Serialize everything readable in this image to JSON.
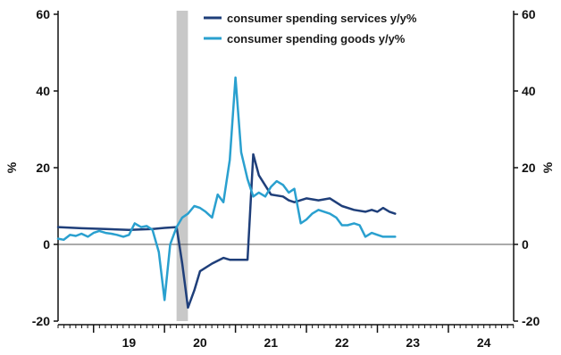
{
  "chart_data": {
    "type": "line",
    "title": "",
    "ylabel_left": "%",
    "ylabel_right": "%",
    "ylim": [
      -20,
      60
    ],
    "y_ticks": [
      -20,
      0,
      20,
      40,
      60
    ],
    "x_range": [
      2018.5,
      2024.92
    ],
    "x_ticks": [
      {
        "label": "19",
        "value": 2019.5
      },
      {
        "label": "20",
        "value": 2020.5
      },
      {
        "label": "21",
        "value": 2021.5
      },
      {
        "label": "22",
        "value": 2022.5
      },
      {
        "label": "23",
        "value": 2023.5
      },
      {
        "label": "24",
        "value": 2024.5
      }
    ],
    "shaded_period": [
      2020.17,
      2020.33
    ],
    "zero_line": true,
    "legend_position": "top-center",
    "series": [
      {
        "name": "consumer spending services y/y%",
        "color": "#1f3f7a",
        "x": [
          2018.5,
          2018.83,
          2019.17,
          2019.5,
          2019.83,
          2020.0,
          2020.17,
          2020.25,
          2020.33,
          2020.42,
          2020.5,
          2020.67,
          2020.83,
          2020.92,
          2021.0,
          2021.17,
          2021.25,
          2021.33,
          2021.5,
          2021.67,
          2021.75,
          2021.83,
          2022.0,
          2022.17,
          2022.33,
          2022.5,
          2022.67,
          2022.83,
          2022.92,
          2023.0,
          2023.08,
          2023.17,
          2023.25
        ],
        "y": [
          4.5,
          4.2,
          4.0,
          3.8,
          4.0,
          4.3,
          4.5,
          -5.0,
          -16.5,
          -12.0,
          -7.0,
          -5.0,
          -3.5,
          -4.0,
          -4.0,
          -4.0,
          23.5,
          18.0,
          13.0,
          12.5,
          11.5,
          11.0,
          12.0,
          11.5,
          12.0,
          10.0,
          9.0,
          8.5,
          9.0,
          8.5,
          9.5,
          8.5,
          8.0
        ]
      },
      {
        "name": "consumer spending goods y/y%",
        "color": "#2aa0cf",
        "x": [
          2018.5,
          2018.58,
          2018.67,
          2018.75,
          2018.83,
          2018.92,
          2019.0,
          2019.08,
          2019.17,
          2019.25,
          2019.33,
          2019.42,
          2019.5,
          2019.58,
          2019.67,
          2019.75,
          2019.83,
          2019.92,
          2020.0,
          2020.08,
          2020.17,
          2020.25,
          2020.33,
          2020.42,
          2020.5,
          2020.58,
          2020.67,
          2020.75,
          2020.83,
          2020.92,
          2021.0,
          2021.08,
          2021.17,
          2021.25,
          2021.33,
          2021.42,
          2021.5,
          2021.58,
          2021.67,
          2021.75,
          2021.83,
          2021.92,
          2022.0,
          2022.08,
          2022.17,
          2022.25,
          2022.33,
          2022.42,
          2022.5,
          2022.58,
          2022.67,
          2022.75,
          2022.83,
          2022.92,
          2023.0,
          2023.08,
          2023.17,
          2023.25
        ],
        "y": [
          1.5,
          1.2,
          2.5,
          2.2,
          2.8,
          2.0,
          3.0,
          3.5,
          3.0,
          2.8,
          2.5,
          2.0,
          2.5,
          5.5,
          4.5,
          4.8,
          3.8,
          -2.0,
          -14.5,
          0.0,
          4.5,
          7.0,
          8.0,
          10.0,
          9.5,
          8.5,
          7.0,
          13.0,
          11.0,
          22.0,
          43.5,
          24.0,
          17.0,
          12.5,
          13.5,
          12.5,
          15.0,
          16.5,
          15.5,
          13.5,
          14.5,
          5.5,
          6.5,
          8.0,
          9.0,
          8.5,
          8.0,
          7.0,
          5.0,
          5.0,
          5.5,
          5.0,
          2.0,
          3.0,
          2.5,
          2.0,
          2.0,
          2.0
        ]
      }
    ]
  }
}
